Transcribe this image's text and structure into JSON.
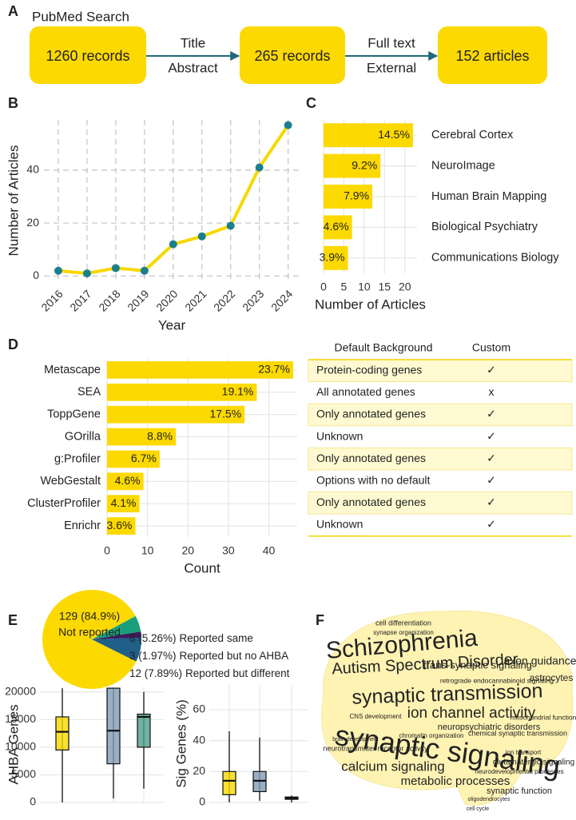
{
  "panel_labels": [
    "A",
    "B",
    "C",
    "D",
    "E",
    "F"
  ],
  "flow": {
    "title": "PubMed Search",
    "nodes": [
      "1260 records",
      "265 records",
      "152 articles"
    ],
    "edges": [
      [
        "Title",
        "Abstract"
      ],
      [
        "Full text",
        "External"
      ]
    ]
  },
  "chart_data": [
    {
      "type": "line",
      "x": [
        2016,
        2017,
        2018,
        2019,
        2020,
        2021,
        2022,
        2023,
        2024
      ],
      "values": [
        2,
        1,
        3,
        2,
        12,
        15,
        19,
        41,
        57
      ],
      "xlabel": "Year",
      "ylabel": "Number of Articles",
      "xlim": [
        2015.5,
        2024.4
      ],
      "xticks": [
        2016,
        2017,
        2018,
        2019,
        2020,
        2021,
        2022,
        2023,
        2024
      ],
      "ylim": [
        -2,
        59
      ],
      "yticks": [
        0,
        20,
        40
      ],
      "grid": true,
      "color": "#f7d800",
      "marker_color": "#1c7f8c"
    },
    {
      "type": "barh",
      "categories": [
        "Cerebral Cortex",
        "NeuroImage",
        "Human Brain Mapping",
        "Biological Psychiatry",
        "Communications Biology"
      ],
      "values": [
        22,
        14,
        12,
        7,
        6
      ],
      "percent_labels": [
        "14.5%",
        "9.2%",
        "7.9%",
        "4.6%",
        "3.9%"
      ],
      "xlabel": "Number of Articles",
      "xlim": [
        0,
        23
      ],
      "xticks": [
        0,
        5,
        10,
        15,
        20
      ],
      "grid": true,
      "color": "#fcd900",
      "label_side": "right"
    },
    {
      "type": "barh",
      "categories": [
        "Metascape",
        "SEA",
        "ToppGene",
        "GOrilla",
        "g:Profiler",
        "WebGestalt",
        "ClusterProfiler",
        "Enrichr"
      ],
      "values": [
        46,
        37,
        34,
        17,
        13,
        9,
        8,
        7
      ],
      "percent_labels": [
        "23.7%",
        "19.1%",
        "17.5%",
        "8.8%",
        "6.7%",
        "4.6%",
        "4.1%",
        "3.6%"
      ],
      "xlabel": "Count",
      "xlim": [
        0,
        47
      ],
      "xticks": [
        0,
        10,
        20,
        30,
        40
      ],
      "grid": true,
      "color": "#fcd900",
      "label_side": "left"
    },
    {
      "type": "pie",
      "categories": [
        "Not reported",
        "Reported same",
        "Reported but no AHBA",
        "Reported but different"
      ],
      "values": [
        129,
        8,
        3,
        12
      ],
      "value_labels": [
        "129 (84.9%)",
        "8 (5.26%)",
        "3 (1.97%)",
        "12 (7.89%)"
      ],
      "colors": [
        "#fcd900",
        "#19a07a",
        "#3d1a5c",
        "#1f5f88"
      ]
    },
    {
      "type": "box",
      "ylabel": "AHBA Genes",
      "ylim": [
        0,
        21000
      ],
      "yticks": [
        0,
        5000,
        10000,
        15000,
        20000
      ],
      "grid": true,
      "boxes": [
        {
          "color": "#f7d800",
          "min": 0,
          "q1": 9500,
          "median": 12800,
          "q3": 15500,
          "max": 20700
        },
        {
          "color": "#7f9bb5",
          "min": 700,
          "q1": 7000,
          "median": 13000,
          "q3": 20700,
          "max": 20700
        },
        {
          "color": "#4f9e8a",
          "min": 2500,
          "q1": 10000,
          "median": 15500,
          "q3": 16000,
          "max": 20000
        }
      ]
    },
    {
      "type": "box",
      "ylabel": "Sig Genes (%)",
      "ylim": [
        0,
        76
      ],
      "yticks": [
        0,
        20,
        40,
        60
      ],
      "grid": true,
      "boxes": [
        {
          "color": "#f7d800",
          "min": 0,
          "q1": 5,
          "median": 14,
          "q3": 20,
          "max": 46
        },
        {
          "color": "#7f9bb5",
          "min": 1,
          "q1": 7,
          "median": 14,
          "q3": 20,
          "max": 42
        },
        {
          "color": "#222222",
          "min": 0,
          "q1": 2,
          "median": 3,
          "q3": 3.5,
          "max": 4.5
        }
      ]
    }
  ],
  "table": {
    "header": [
      "Default Background",
      "Custom"
    ],
    "rows": [
      [
        "Protein-coding genes",
        "✓"
      ],
      [
        "All annotated genes",
        "x"
      ],
      [
        "Only annotated genes",
        "✓"
      ],
      [
        "Unknown",
        "✓"
      ],
      [
        "Only annotated genes",
        "✓"
      ],
      [
        "Options with no default",
        "✓"
      ],
      [
        "Only annotated genes",
        "✓"
      ],
      [
        "Unknown",
        "✓"
      ]
    ]
  },
  "wordcloud": {
    "words": [
      {
        "text": "Schizophrenia",
        "color": "#2d5c8a"
      },
      {
        "text": "Autism Spectrum Disorder",
        "color": "#3d6a90"
      },
      {
        "text": "synaptic transmission",
        "color": "#178a6a"
      },
      {
        "text": "ion channel activity",
        "color": "#1a6a8a"
      },
      {
        "text": "synaptic signaling",
        "color": "#f0d400"
      },
      {
        "text": "calcium signaling",
        "color": "#2d5c8a"
      },
      {
        "text": "metabolic processes",
        "color": "#3d6a90"
      },
      {
        "text": "axon guidance",
        "color": "#2d5c8a"
      },
      {
        "text": "trans-synaptic signaling",
        "color": "#3d5090"
      },
      {
        "text": "astrocytes",
        "color": "#2d5c8a"
      },
      {
        "text": "chemical synaptic transmission",
        "color": "#3d3d7a"
      },
      {
        "text": "neurotransmitter receptor activity",
        "color": "#3d3d7a"
      },
      {
        "text": "synaptic function",
        "color": "#2d5c8a"
      },
      {
        "text": "glutamatergic signaling",
        "color": "#3d3d7a"
      },
      {
        "text": "neuropsychiatric disorders",
        "color": "#3d3d7a"
      },
      {
        "text": "cell differentiation",
        "color": "#4a2a6a"
      },
      {
        "text": "synapse organization",
        "color": "#4a2a6a"
      },
      {
        "text": "retrograde endocannabinoid signaling",
        "color": "#4a2a6a"
      },
      {
        "text": "mitochondrial function",
        "color": "#4a2a6a"
      },
      {
        "text": "ion transport",
        "color": "#4a2a6a"
      },
      {
        "text": "brain development",
        "color": "#4a2a6a"
      },
      {
        "text": "CNS development",
        "color": "#4a2a6a"
      },
      {
        "text": "chromatin organization",
        "color": "#4a2a6a"
      },
      {
        "text": "neurodevelopmental processes",
        "color": "#4a2a6a"
      },
      {
        "text": "oligodendrocytes",
        "color": "#4a2a6a"
      },
      {
        "text": "cell cycle",
        "color": "#4a2a6a"
      }
    ]
  }
}
